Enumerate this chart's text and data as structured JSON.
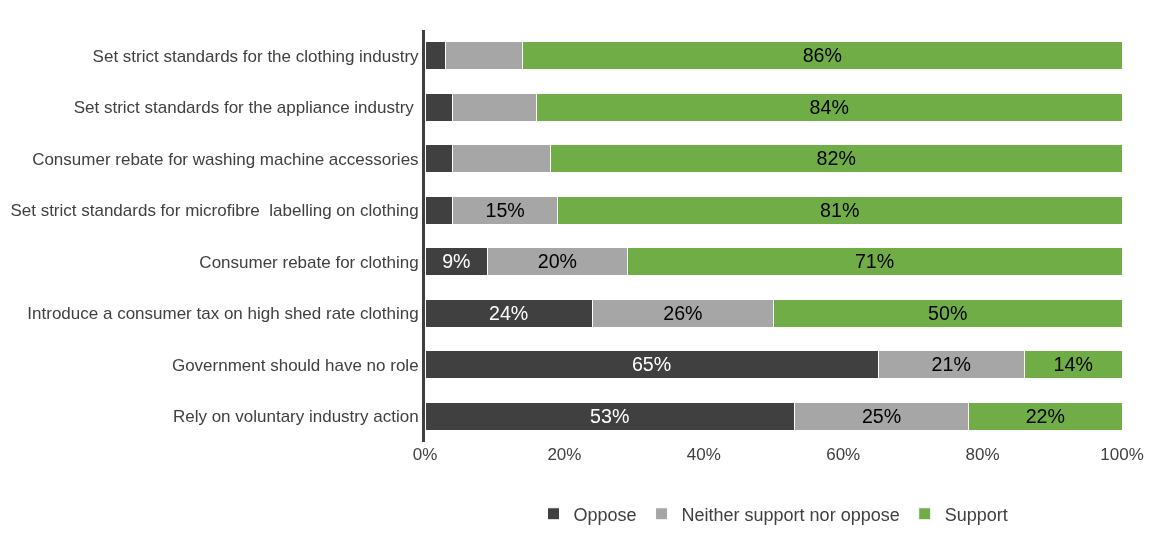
{
  "chart_data": {
    "type": "bar",
    "orientation": "horizontal",
    "stacked": true,
    "categories": [
      "Set strict standards for the clothing industry",
      "Set strict standards for the appliance industry ",
      "Consumer rebate for washing machine accessories",
      "Set strict standards for microfibre  labelling on clothing",
      "Consumer rebate for clothing",
      "Introduce a consumer tax on high shed rate clothing",
      "Government should have no role",
      "Rely on voluntary industry action"
    ],
    "series": [
      {
        "name": "Oppose",
        "color": "#404040",
        "values": [
          3,
          4,
          4,
          4,
          9,
          24,
          65,
          53
        ],
        "value_labels": [
          null,
          null,
          null,
          null,
          "9%",
          "24%",
          "65%",
          "53%"
        ]
      },
      {
        "name": "Neither support nor oppose",
        "color": "#a6a6a6",
        "values": [
          11,
          12,
          14,
          15,
          20,
          26,
          21,
          25
        ],
        "value_labels": [
          null,
          null,
          null,
          "15%",
          "20%",
          "26%",
          "21%",
          "25%"
        ]
      },
      {
        "name": "Support",
        "color": "#70ad47",
        "values": [
          86,
          84,
          82,
          81,
          71,
          50,
          14,
          22
        ],
        "value_labels": [
          "86%",
          "84%",
          "82%",
          "81%",
          "71%",
          "50%",
          "14%",
          "22%"
        ]
      }
    ],
    "xlim": [
      0,
      100
    ],
    "xticks": [
      {
        "value": 0,
        "label": "0%"
      },
      {
        "value": 20,
        "label": "20%"
      },
      {
        "value": 40,
        "label": "40%"
      },
      {
        "value": 60,
        "label": "60%"
      },
      {
        "value": 80,
        "label": "80%"
      },
      {
        "value": 100,
        "label": "100%"
      }
    ],
    "grid": false,
    "legend": "bottom"
  }
}
